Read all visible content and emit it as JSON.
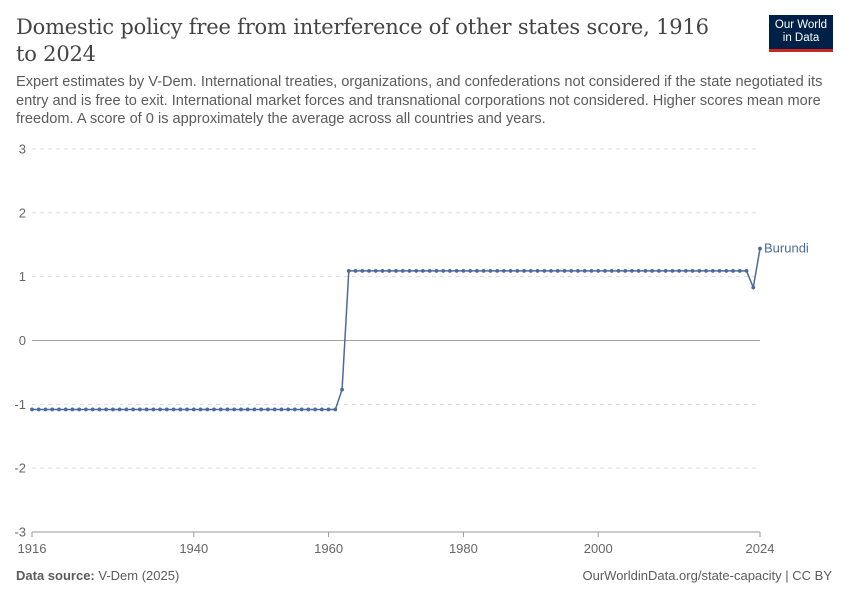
{
  "header": {
    "title": "Domestic policy free from interference of other states score, 1916 to 2024",
    "subtitle": "Expert estimates by V-Dem. International treaties, organizations, and confederations not considered if the state negotiated its entry and is free to exit. International market forces and transnational corporations not considered. Higher scores mean more freedom. A score of 0 is approximately the average across all countries and years.",
    "logo_line1": "Our World",
    "logo_line2": "in Data"
  },
  "footer": {
    "source_label": "Data source:",
    "source_value": "V-Dem (2025)",
    "link": "OurWorldinData.org/state-capacity | CC BY"
  },
  "colors": {
    "series": "#4c6a9c",
    "zero_line": "#a0a0a0",
    "grid": "#dddddd",
    "logo_bg": "#002147",
    "logo_accent": "#ce261e"
  },
  "chart_data": {
    "type": "line",
    "title": "Domestic policy free from interference of other states score, 1916 to 2024",
    "xlabel": "",
    "ylabel": "",
    "xlim": [
      1916,
      2024
    ],
    "ylim": [
      -3,
      3
    ],
    "x_ticks": [
      1916,
      1940,
      1960,
      1980,
      2000,
      2024
    ],
    "y_ticks": [
      3,
      2,
      1,
      0,
      -1,
      -2,
      -3
    ],
    "grid": "horizontal dashed",
    "legend": "inline label at line end",
    "series": [
      {
        "name": "Burundi",
        "segments": [
          {
            "from": 1916,
            "to": 1961,
            "value": -1.08
          },
          {
            "from": 1962,
            "to": 1962,
            "value": -0.77
          },
          {
            "from": 1963,
            "to": 2022,
            "value": 1.09
          },
          {
            "from": 2023,
            "to": 2023,
            "value": 0.83
          },
          {
            "from": 2024,
            "to": 2024,
            "value": 1.44
          }
        ]
      }
    ]
  }
}
